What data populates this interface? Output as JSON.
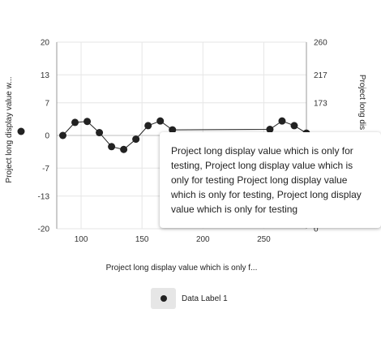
{
  "chart_data": {
    "type": "line",
    "xlabel": "Project long display value which is only f...",
    "ylabel": "Project long display value w...",
    "y2label": "Project long dis",
    "x_ticks": [
      "100",
      "150",
      "200",
      "250"
    ],
    "xlim": [
      80,
      285
    ],
    "y_ticks": [
      "20",
      "13",
      "7",
      "0",
      "-7",
      "-13",
      "-20"
    ],
    "ylim": [
      -20,
      20
    ],
    "y2_ticks": [
      "260",
      "217",
      "173",
      "0"
    ],
    "series": [
      {
        "name": "Data Label 1",
        "color": "#222222",
        "x": [
          85,
          95,
          105,
          115,
          125,
          135,
          145,
          155,
          165,
          175,
          255,
          265,
          275,
          285
        ],
        "y": [
          0,
          2.8,
          3,
          0.6,
          -2.4,
          -3,
          -0.8,
          2.1,
          3.1,
          1.2,
          1.3,
          3.1,
          2.1,
          0.5
        ]
      }
    ],
    "legend": {
      "position": "bottom"
    },
    "grid": true
  },
  "tooltip": {
    "text": "Project long display value which is only for testing, Project long display value which is only for testing Project long display value which is only for testing, Project long display value which is only for testing"
  },
  "legend": {
    "label": "Data Label 1"
  }
}
